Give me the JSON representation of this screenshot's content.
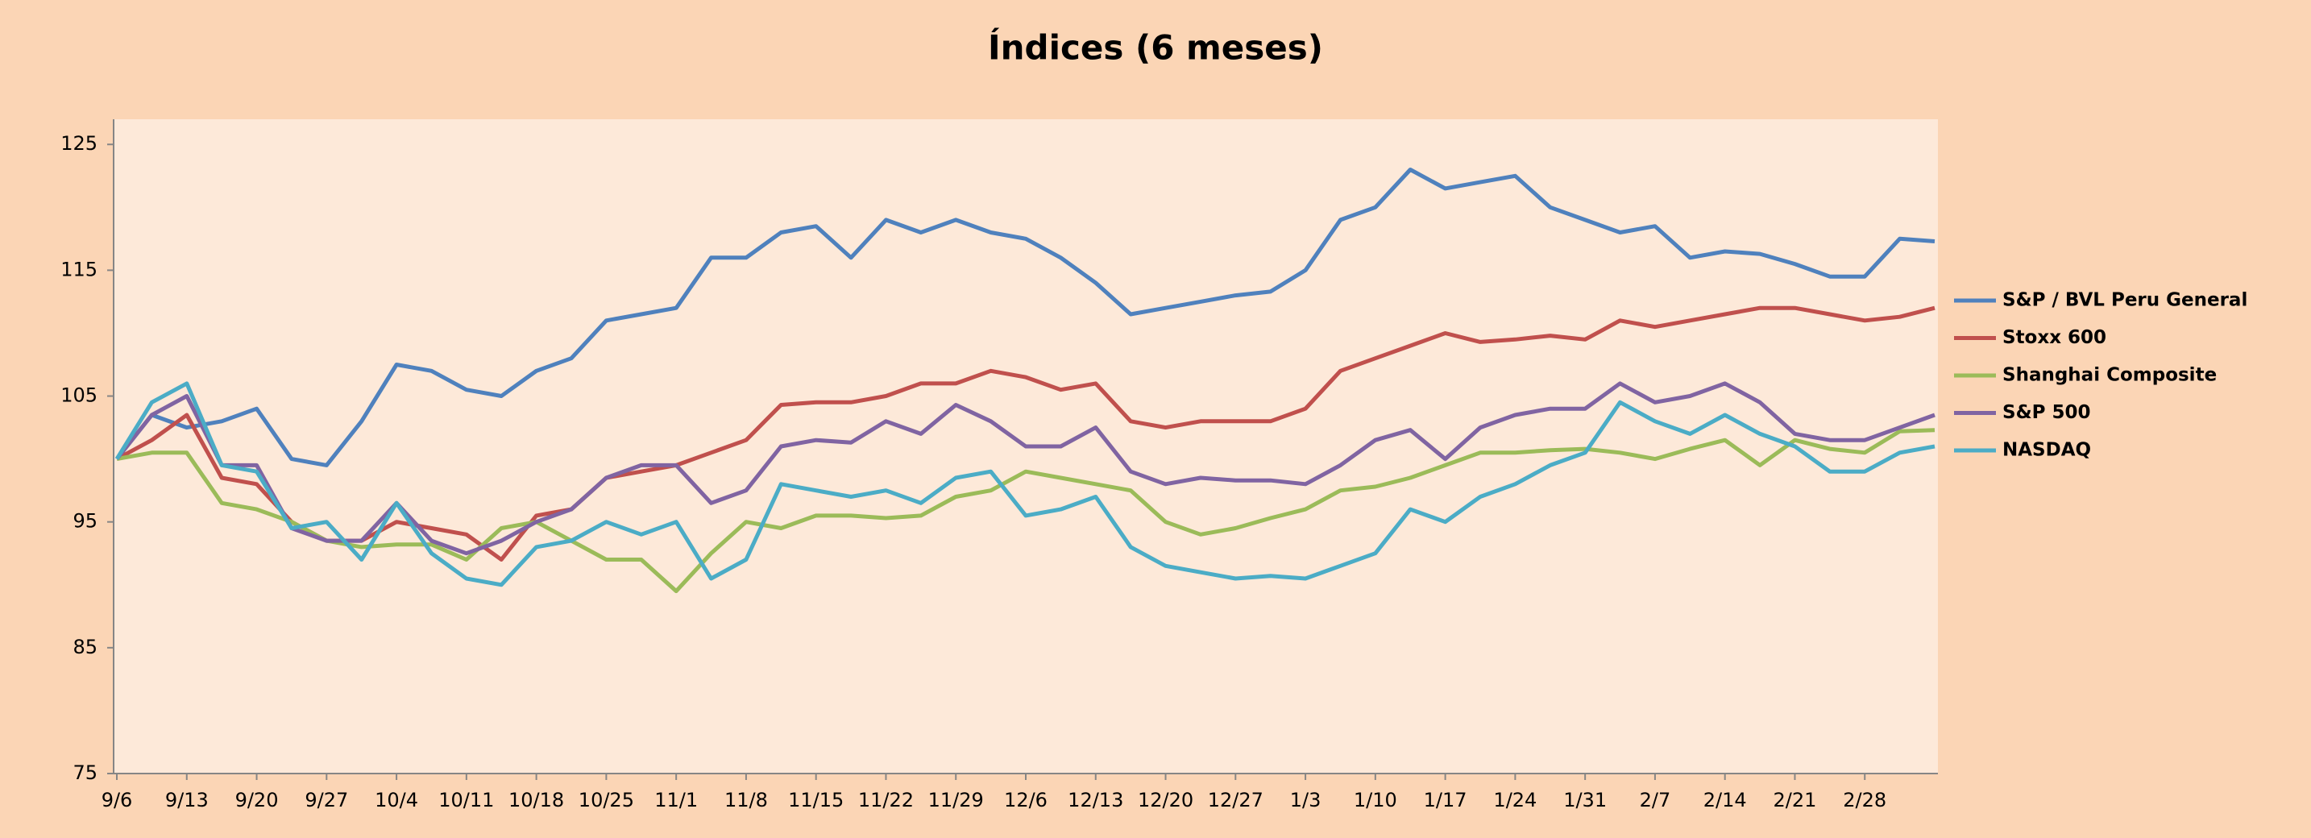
{
  "chart_data": {
    "type": "line",
    "title": "Índices (6 meses)",
    "categories": [
      "9/6",
      null,
      "9/13",
      null,
      "9/20",
      null,
      "9/27",
      null,
      "10/4",
      null,
      "10/11",
      null,
      "10/18",
      null,
      "10/25",
      null,
      "11/1",
      null,
      "11/8",
      null,
      "11/15",
      null,
      "11/22",
      null,
      "11/29",
      null,
      "12/6",
      null,
      "12/13",
      null,
      "12/20",
      null,
      "12/27",
      null,
      "1/3",
      null,
      "1/10",
      null,
      "1/17",
      null,
      "1/24",
      null,
      "1/31",
      null,
      "2/7",
      null,
      "2/14",
      null,
      "2/21",
      null,
      "2/28",
      null,
      null
    ],
    "ylim": [
      75,
      127
    ],
    "yticks": [
      75,
      85,
      95,
      105,
      115,
      125
    ],
    "legend": "right",
    "series": [
      {
        "name": "S&P / BVL Peru General",
        "color": "#4f81bd",
        "values": [
          100,
          103.5,
          102.5,
          103,
          104,
          100,
          99.5,
          103,
          107.5,
          107,
          105.5,
          105,
          107,
          108,
          111,
          111.5,
          112,
          116,
          116,
          118,
          118.5,
          116,
          119,
          118,
          119,
          118,
          117.5,
          116,
          114,
          111.5,
          112,
          112.5,
          113,
          113.3,
          115,
          119,
          120,
          123,
          121.5,
          122,
          122.5,
          120,
          119,
          118,
          118.5,
          116,
          116.5,
          116.3,
          115.5,
          114.5,
          114.5,
          117.5,
          117.3
        ]
      },
      {
        "name": "Stoxx 600",
        "color": "#c0504d",
        "values": [
          100,
          101.5,
          103.5,
          98.5,
          98,
          95,
          93.5,
          93.5,
          95,
          94.5,
          94,
          92,
          95.5,
          96,
          98.5,
          99,
          99.5,
          100.5,
          101.5,
          104.3,
          104.5,
          104.5,
          105,
          106,
          106,
          107,
          106.5,
          105.5,
          106,
          103,
          102.5,
          103,
          103,
          103,
          104,
          107,
          108,
          109,
          110,
          109.3,
          109.5,
          109.8,
          109.5,
          111,
          110.5,
          111,
          111.5,
          112,
          112,
          111.5,
          111,
          111.3,
          112
        ]
      },
      {
        "name": "Shanghai Composite",
        "color": "#9bbb59",
        "values": [
          100,
          100.5,
          100.5,
          96.5,
          96,
          95,
          93.5,
          93,
          93.2,
          93.2,
          92,
          94.5,
          95,
          93.5,
          92,
          92,
          89.5,
          92.5,
          95,
          94.5,
          95.5,
          95.5,
          95.3,
          95.5,
          97,
          97.5,
          99,
          98.5,
          98,
          97.5,
          95,
          94,
          94.5,
          95.3,
          96,
          97.5,
          97.8,
          98.5,
          99.5,
          100.5,
          100.5,
          100.7,
          100.8,
          100.5,
          100,
          100.8,
          101.5,
          99.5,
          101.5,
          100.8,
          100.5,
          102.2,
          102.3
        ]
      },
      {
        "name": "S&P 500",
        "color": "#8064a2",
        "values": [
          100,
          103.5,
          105,
          99.5,
          99.5,
          94.5,
          93.5,
          93.5,
          96.5,
          93.5,
          92.5,
          93.5,
          95,
          96,
          98.5,
          99.5,
          99.5,
          96.5,
          97.5,
          101,
          101.5,
          101.3,
          103,
          102,
          104.3,
          103,
          101,
          101,
          102.5,
          99,
          98,
          98.5,
          98.3,
          98.3,
          98,
          99.5,
          101.5,
          102.3,
          100,
          102.5,
          103.5,
          104,
          104,
          106,
          104.5,
          105,
          106,
          104.5,
          102,
          101.5,
          101.5,
          102.5,
          103.5
        ]
      },
      {
        "name": "NASDAQ",
        "color": "#4bacc6",
        "values": [
          100,
          104.5,
          106,
          99.5,
          99,
          94.5,
          95,
          92,
          96.5,
          92.5,
          90.5,
          90,
          93,
          93.5,
          95,
          94,
          95,
          90.5,
          92,
          98,
          97.5,
          97,
          97.5,
          96.5,
          98.5,
          99,
          95.5,
          96,
          97,
          93,
          91.5,
          91,
          90.5,
          90.7,
          90.5,
          91.5,
          92.5,
          96,
          95,
          97,
          98,
          99.5,
          100.5,
          104.5,
          103,
          102,
          103.5,
          102,
          101,
          99,
          99,
          100.5,
          101
        ]
      }
    ]
  }
}
